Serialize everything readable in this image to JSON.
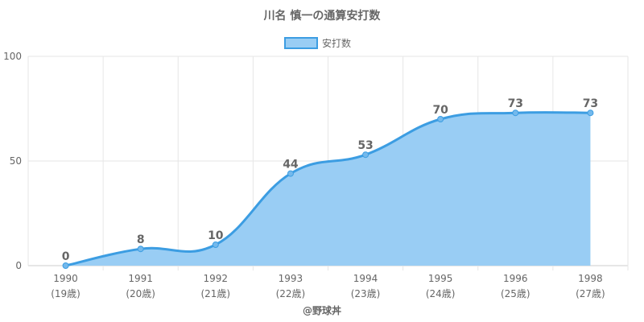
{
  "chart_data": {
    "type": "area",
    "title": "川名 慎一の通算安打数",
    "categories": [
      "1990",
      "1991",
      "1992",
      "1993",
      "1994",
      "1995",
      "1996",
      "1998"
    ],
    "ages": [
      "(19歳)",
      "(20歳)",
      "(21歳)",
      "(22歳)",
      "(23歳)",
      "(24歳)",
      "(25歳)",
      "(27歳)"
    ],
    "series": [
      {
        "name": "安打数",
        "values": [
          0,
          8,
          10,
          44,
          53,
          70,
          73,
          73
        ]
      }
    ],
    "ylim": [
      0,
      100
    ],
    "yticks": [
      "0",
      "50",
      "100"
    ],
    "grid": true,
    "legend_position": "top",
    "line_color": "#3c9de2",
    "fill_color": "#99cdf4"
  },
  "credit": "@野球丼"
}
